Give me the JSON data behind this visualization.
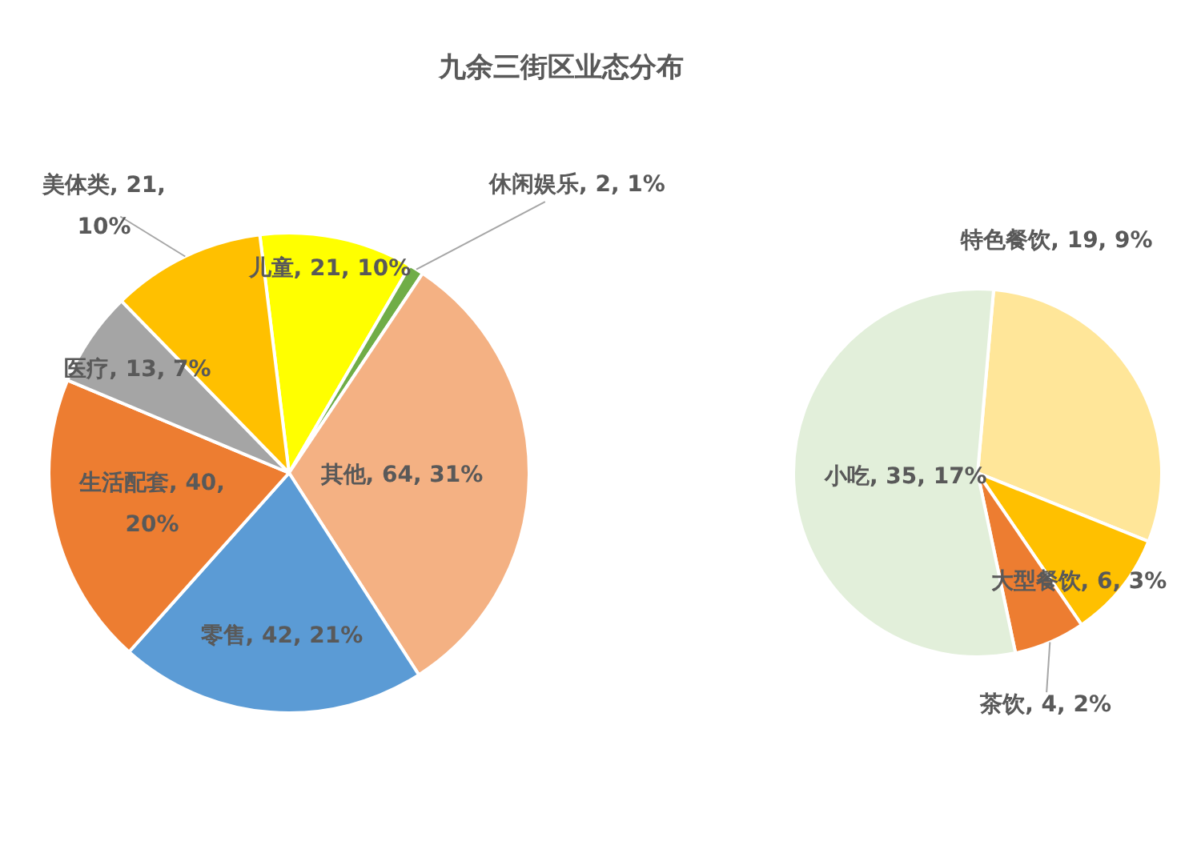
{
  "chart_data": [
    {
      "type": "pie",
      "title": "九余三街区业态分布",
      "categories": [
        "儿童",
        "休闲娱乐",
        "其他",
        "零售",
        "生活配套",
        "医疗",
        "美体类"
      ],
      "values": [
        21,
        2,
        64,
        42,
        40,
        13,
        21
      ],
      "colors": [
        "#ffff00",
        "#70ad47",
        "#f4b183",
        "#5b9bd5",
        "#ed7d31",
        "#a5a5a5",
        "#ffc000"
      ],
      "value_labels": [
        "21, 10%",
        "2, 1%",
        "64, 31%",
        "42, 21%",
        "40, 20%",
        "13, 7%",
        "21, 10%"
      ]
    },
    {
      "type": "pie",
      "categories": [
        "特色餐饮",
        "大型餐饮",
        "茶饮",
        "小吃"
      ],
      "values": [
        19,
        6,
        4,
        35
      ],
      "colors": [
        "#ffe699",
        "#ffc000",
        "#ed7d31",
        "#e2efda"
      ],
      "value_labels": [
        "19, 9%",
        "6, 3%",
        "4, 2%",
        "35, 17%"
      ]
    }
  ]
}
